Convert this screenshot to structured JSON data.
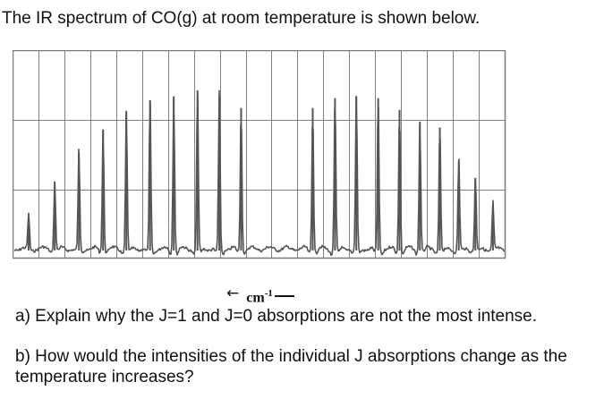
{
  "intro": "The IR spectrum of CO(g) at room temperature is shown below.",
  "chart_data": {
    "type": "line",
    "title": "",
    "xlabel": "cm",
    "xlabel_exponent": "-1",
    "ylabel": "",
    "axis_arrow": "←",
    "grid": true,
    "x_direction": "decreasing to the right",
    "peak_positions": [
      0.034,
      0.089,
      0.14,
      0.191,
      0.24,
      0.29,
      0.34,
      0.39,
      0.436,
      0.482,
      0.633,
      0.68,
      0.725,
      0.771,
      0.816,
      0.859,
      0.901,
      0.941,
      0.976,
      1.013,
      1.048
    ],
    "peak_intensities": [
      0.18,
      0.36,
      0.51,
      0.63,
      0.72,
      0.78,
      0.8,
      0.83,
      0.8,
      0.74,
      0.74,
      0.79,
      0.8,
      0.79,
      0.73,
      0.67,
      0.64,
      0.47,
      0.38,
      0.24,
      0.12
    ],
    "colors": {
      "trace": "#555555",
      "grid": "#808080",
      "frame": "#7a7a7a"
    }
  },
  "questions": {
    "a": "a) Explain why the J=1 and J=0 absorptions are not the most intense.",
    "b": "b) How would the intensities of the individual J absorptions change as the temperature increases?"
  }
}
